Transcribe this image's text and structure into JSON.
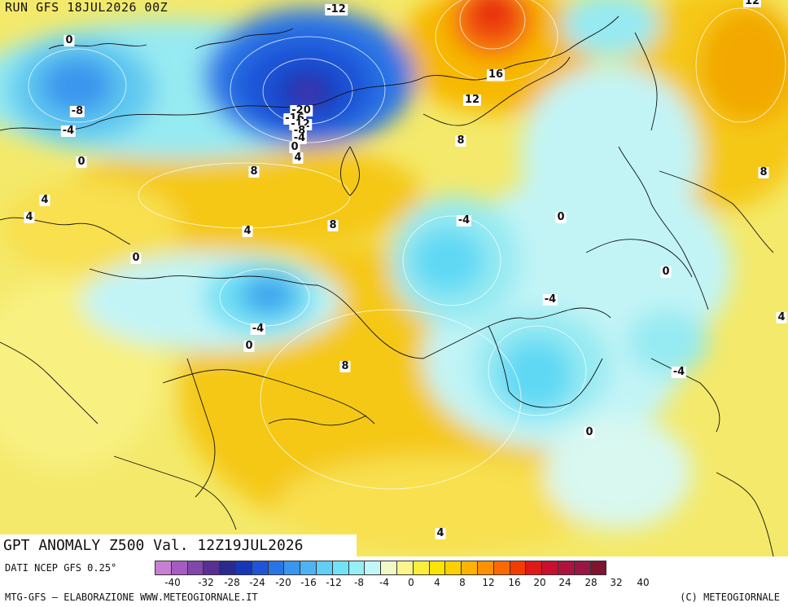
{
  "header": {
    "run": "RUN GFS 18JUL2026 00Z"
  },
  "title": "GPT ANOMALY Z500 Val. 12Z19JUL2026",
  "footer": {
    "source": "DATI NCEP GFS 0.25°",
    "credit": "MTG-GFS — ELABORAZIONE WWW.METEOGIORNALE.IT",
    "copyright": "(C) METEOGIORNALE"
  },
  "colorbar": {
    "colors": [
      "#c77fd4",
      "#a45cc0",
      "#8246ac",
      "#5a2f94",
      "#2a2a8c",
      "#1837b8",
      "#1e55d8",
      "#2a75e6",
      "#3a95ee",
      "#4fb2f2",
      "#5fd0f4",
      "#70e4f4",
      "#96eef6",
      "#c2f7f8",
      "#f2f9c4",
      "#fbf58c",
      "#fcef3a",
      "#fde300",
      "#fdd000",
      "#fdb400",
      "#fc9200",
      "#fa6a00",
      "#f23c00",
      "#e01818",
      "#c8102e",
      "#b0123e",
      "#9a1444",
      "#7e1430"
    ],
    "ticks": [
      "-40",
      "-32",
      "-28",
      "-24",
      "-20",
      "-16",
      "-12",
      "-8",
      "-4",
      "0",
      "4",
      "8",
      "12",
      "16",
      "20",
      "24",
      "28",
      "32",
      "40"
    ]
  },
  "map": {
    "contour_labels": [
      "-12",
      "0",
      "-8",
      "-4",
      "0",
      "-20",
      "-16",
      "-12",
      "-8",
      "-4",
      "0",
      "4",
      "8",
      "8",
      "4",
      "4",
      "4",
      "0",
      "-4",
      "0",
      "16",
      "12",
      "8",
      "12",
      "8",
      "-4",
      "0",
      "0",
      "-4",
      "4",
      "-4",
      "8",
      "0",
      "4"
    ]
  }
}
